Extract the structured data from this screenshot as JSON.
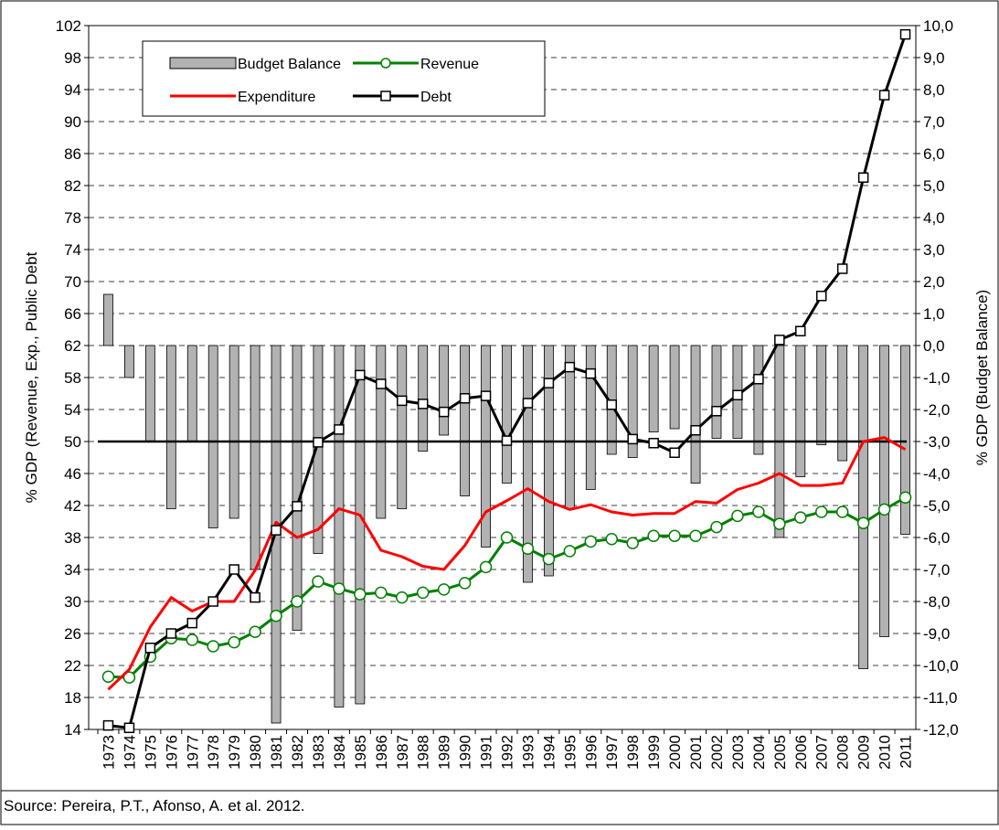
{
  "chart_data": {
    "type": "combo",
    "y_label": "% GDP (Revenue, Exp., Public Debt",
    "y2_label": "% GDP (Budget Balance)",
    "source": "Source: Pereira, P.T., Afonso, A. et al. 2012.",
    "categories": [
      "1973",
      "1974",
      "1975",
      "1976",
      "1977",
      "1978",
      "1979",
      "1980",
      "1981",
      "1982",
      "1983",
      "1984",
      "1985",
      "1986",
      "1987",
      "1988",
      "1989",
      "1990",
      "1991",
      "1992",
      "1993",
      "1994",
      "1995",
      "1996",
      "1997",
      "1998",
      "1999",
      "2000",
      "2001",
      "2002",
      "2003",
      "2004",
      "2005",
      "2006",
      "2007",
      "2008",
      "2009",
      "2010",
      "2011"
    ],
    "ylim": [
      14,
      102
    ],
    "yticks": [
      14,
      18,
      22,
      26,
      30,
      34,
      38,
      42,
      46,
      50,
      54,
      58,
      62,
      66,
      70,
      74,
      78,
      82,
      86,
      90,
      94,
      98,
      102
    ],
    "y2lim": [
      -12,
      10
    ],
    "y2ticks": [
      {
        "value": -12,
        "label": "-12,0"
      },
      {
        "value": -11,
        "label": "-11,0"
      },
      {
        "value": -10,
        "label": "-10,0"
      },
      {
        "value": -9,
        "label": "-9,0"
      },
      {
        "value": -8,
        "label": "-8,0"
      },
      {
        "value": -7,
        "label": "-7,0"
      },
      {
        "value": -6,
        "label": "-6,0"
      },
      {
        "value": -5,
        "label": "-5,0"
      },
      {
        "value": -4,
        "label": "-4,0"
      },
      {
        "value": -3,
        "label": "-3,0"
      },
      {
        "value": -2,
        "label": "-2,0"
      },
      {
        "value": -1,
        "label": "-1,0"
      },
      {
        "value": 0,
        "label": "0,0"
      },
      {
        "value": 1,
        "label": "1,0"
      },
      {
        "value": 2,
        "label": "2,0"
      },
      {
        "value": 3,
        "label": "3,0"
      },
      {
        "value": 4,
        "label": "4,0"
      },
      {
        "value": 5,
        "label": "5,0"
      },
      {
        "value": 6,
        "label": "6,0"
      },
      {
        "value": 7,
        "label": "7,0"
      },
      {
        "value": 8,
        "label": "8,0"
      },
      {
        "value": 9,
        "label": "9,0"
      },
      {
        "value": 10,
        "label": "10,0"
      }
    ],
    "grid": true,
    "legend": "upper left",
    "reference_line": {
      "axis": "y2",
      "value": -3
    },
    "series": [
      {
        "name": "Budget Balance",
        "type": "bar",
        "axis": "y2",
        "color": "#b2b2b2",
        "values": [
          1.6,
          -1.0,
          -3.0,
          -5.1,
          -3.0,
          -5.7,
          -5.4,
          -7.0,
          -11.8,
          -8.9,
          -6.5,
          -11.3,
          -11.2,
          -5.4,
          -5.1,
          -3.3,
          -2.8,
          -4.7,
          -6.3,
          -4.3,
          -7.4,
          -7.2,
          -5.1,
          -4.5,
          -3.4,
          -3.5,
          -2.7,
          -2.6,
          -4.3,
          -2.9,
          -2.9,
          -3.4,
          -6.0,
          -4.1,
          -3.1,
          -3.6,
          -10.1,
          -9.1,
          -5.9
        ]
      },
      {
        "name": "Revenue",
        "type": "line",
        "marker": "circle",
        "color": "#008000",
        "values": [
          20.6,
          20.5,
          23.1,
          25.4,
          25.2,
          24.4,
          24.9,
          26.2,
          28.2,
          30.0,
          32.5,
          31.6,
          30.9,
          31.1,
          30.5,
          31.1,
          31.5,
          32.3,
          34.3,
          38.0,
          36.6,
          35.3,
          36.3,
          37.5,
          37.8,
          37.3,
          38.2,
          38.2,
          38.2,
          39.3,
          40.7,
          41.2,
          39.7,
          40.5,
          41.2,
          41.2,
          39.8,
          41.5,
          43.0
        ]
      },
      {
        "name": "Expenditure",
        "type": "line",
        "marker": "none",
        "color": "#ff0000",
        "values": [
          19.0,
          21.5,
          26.8,
          30.5,
          28.8,
          30.0,
          30.0,
          33.9,
          39.9,
          38.0,
          39.0,
          41.6,
          40.8,
          36.4,
          35.6,
          34.4,
          34.0,
          37.0,
          41.2,
          42.6,
          44.1,
          42.5,
          41.5,
          42.1,
          41.2,
          40.8,
          41.0,
          41.0,
          42.5,
          42.3,
          44.0,
          44.8,
          46.0,
          44.5,
          44.5,
          44.8,
          50.0,
          50.5,
          49.0
        ]
      },
      {
        "name": "Debt",
        "type": "line",
        "marker": "square",
        "color": "#000000",
        "values": [
          14.5,
          14.2,
          24.2,
          26.0,
          27.3,
          30.0,
          34.0,
          30.5,
          38.9,
          41.9,
          49.9,
          51.5,
          58.3,
          57.2,
          55.1,
          54.7,
          53.7,
          55.4,
          55.7,
          50.1,
          54.8,
          57.3,
          59.3,
          58.5,
          54.6,
          50.3,
          49.8,
          48.6,
          51.4,
          53.8,
          55.8,
          57.8,
          62.7,
          63.8,
          68.2,
          71.6,
          83.0,
          93.3,
          100.9
        ]
      }
    ]
  }
}
